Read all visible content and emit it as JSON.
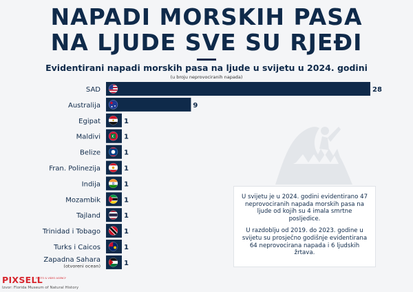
{
  "header": {
    "title_line1": "NAPADI MORSKIH PASA",
    "title_line2": "NA LJUDE SVE SU RJEĐI"
  },
  "chart_data": {
    "type": "bar",
    "orientation": "horizontal",
    "title": "Evidentirani napadi morskih pasa na ljude u svijetu u 2024. godini",
    "subtitle": "(u broju neprovociranih napada)",
    "xlim": [
      0,
      28
    ],
    "grid": false,
    "bar_color": "#0f2a4a",
    "categories": [
      "SAD",
      "Australija",
      "Egipat",
      "Maldivi",
      "Belize",
      "Fran. Polinezija",
      "Indija",
      "Mozambik",
      "Tajland",
      "Trinidad i Tobago",
      "Turks i Caicos",
      "Zapadna Sahara"
    ],
    "category_notes": [
      "",
      "",
      "",
      "",
      "",
      "",
      "",
      "",
      "",
      "",
      "",
      "(otvoreni ocean)"
    ],
    "values": [
      28,
      9,
      1,
      1,
      1,
      1,
      1,
      1,
      1,
      1,
      1,
      1
    ],
    "flag_icons": [
      "flag-usa-icon",
      "flag-australia-icon",
      "flag-egypt-icon",
      "flag-maldives-icon",
      "flag-belize-icon",
      "flag-french-polynesia-icon",
      "flag-india-icon",
      "flag-mozambique-icon",
      "flag-thailand-icon",
      "flag-trinidad-tobago-icon",
      "flag-turks-caicos-icon",
      "flag-western-sahara-icon"
    ]
  },
  "infobox": {
    "paragraph1": "U svijetu je u 2024. godini evidentirano 47 neprovociranih napada morskih pasa na ljude od kojih su 4 imala smrtne posljedice.",
    "paragraph2": "U razdoblju od 2019. do 2023. godine u svijetu su prosječno godišnje evidentirana 64 neprovocirana napada i 6 ljudskih žrtava."
  },
  "footer": {
    "brand": "PIXSELL",
    "brand_tagline": "PHOTO & VIDEO AGENCY",
    "source": "Izvor: Florida Museum of Natural History"
  },
  "icons": {
    "illustration": "shark-attack-icon"
  },
  "colors": {
    "navy": "#0f2a4a",
    "background": "#f4f5f7",
    "brand_red": "#d7262e",
    "illustration": "#e3e6ea"
  }
}
